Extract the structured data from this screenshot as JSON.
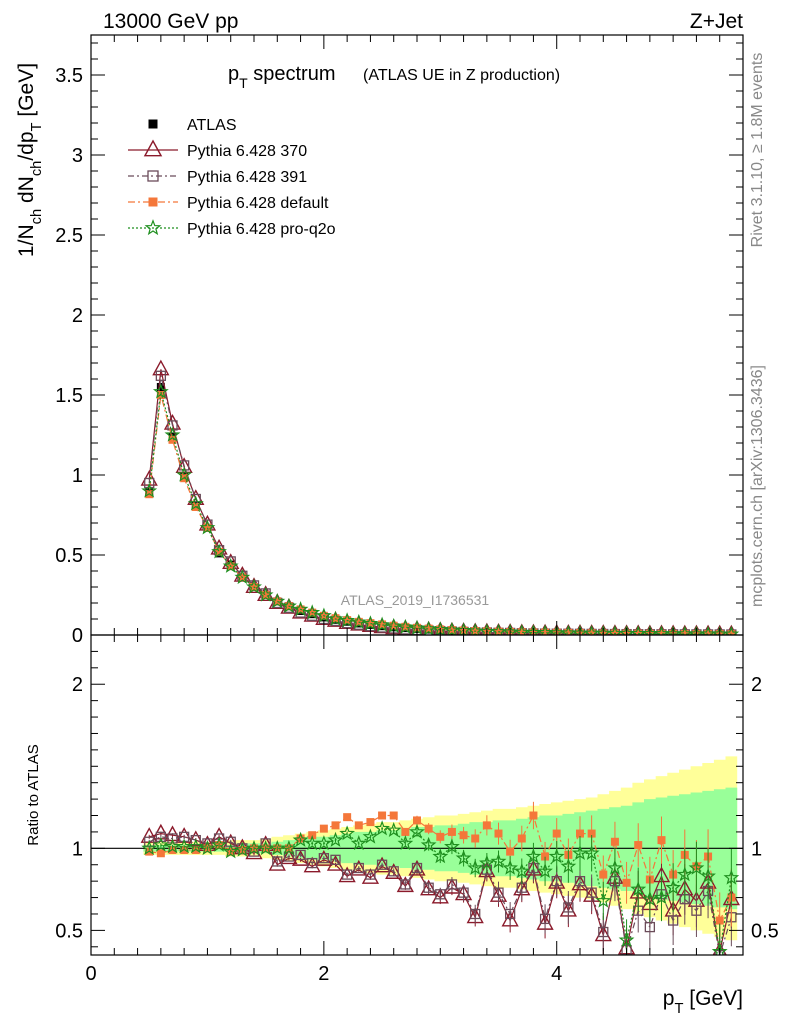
{
  "header": {
    "left": "13000 GeV pp",
    "right": "Z+Jet"
  },
  "side_labels": {
    "rivet": "Rivet 3.1.10, ≥ 1.8M events",
    "mcplots": "mcplots.cern.ch [arXiv:1306.3436]"
  },
  "chart_data": [
    {
      "type": "scatter",
      "title": "p_T spectrum",
      "subtitle": "(ATLAS UE in Z production)",
      "watermark": "ATLAS_2019_I1736531",
      "xlabel": "p_T [GeV]",
      "ylabel": "1/N_ch dN_ch/dp_T [GeV]",
      "xlim": [
        0,
        5.6
      ],
      "ylim": [
        0,
        3.75
      ],
      "xticks": [
        "0",
        "2",
        "4"
      ],
      "yticks": [
        "0",
        "0.5",
        "1",
        "1.5",
        "2",
        "2.5",
        "3",
        "3.5"
      ],
      "legend_position": "top-left",
      "x": [
        0.5,
        0.6,
        0.7,
        0.8,
        0.9,
        1.0,
        1.1,
        1.2,
        1.3,
        1.4,
        1.5,
        1.6,
        1.7,
        1.8,
        1.9,
        2.0,
        2.1,
        2.2,
        2.3,
        2.4,
        2.5,
        2.6,
        2.7,
        2.8,
        2.9,
        3.0,
        3.1,
        3.2,
        3.3,
        3.4,
        3.5,
        3.6,
        3.7,
        3.8,
        3.9,
        4.0,
        4.1,
        4.2,
        4.3,
        4.4,
        4.5,
        4.6,
        4.7,
        4.8,
        4.9,
        5.0,
        5.1,
        5.2,
        5.3,
        5.4,
        5.5
      ],
      "series": [
        {
          "name": "ATLAS",
          "color": "#000000",
          "marker": "filled-square",
          "values": [
            0.9,
            1.55,
            1.24,
            0.99,
            0.81,
            0.67,
            0.51,
            0.44,
            0.36,
            0.3,
            0.25,
            0.21,
            0.18,
            0.15,
            0.13,
            0.11,
            0.095,
            0.083,
            0.072,
            0.063,
            0.055,
            0.048,
            0.043,
            0.038,
            0.034,
            0.03,
            0.027,
            0.024,
            0.022,
            0.02,
            0.018,
            0.016,
            0.015,
            0.014,
            0.013,
            0.012,
            0.011,
            0.01,
            0.0095,
            0.009,
            0.0085,
            0.008,
            0.0075,
            0.007,
            0.0066,
            0.0062,
            0.0058,
            0.0055,
            0.0052,
            0.0049,
            0.0046
          ]
        },
        {
          "name": "Pythia 6.428 370",
          "color": "#8b1a2b",
          "marker": "open-triangle",
          "values": [
            0.97,
            1.66,
            1.32,
            1.05,
            0.85,
            0.69,
            0.54,
            0.45,
            0.37,
            0.3,
            0.25,
            0.2,
            0.17,
            0.14,
            0.12,
            0.1,
            0.088,
            0.075,
            0.065,
            0.056,
            0.048,
            0.042,
            0.036,
            0.032,
            0.027,
            0.024,
            0.021,
            0.019,
            0.017,
            0.016,
            0.014,
            0.013,
            0.011,
            0.01,
            0.009,
            0.0085,
            0.008,
            0.0075,
            0.007,
            0.0065,
            0.006,
            0.0055,
            0.005,
            0.0048,
            0.0045,
            0.0043,
            0.004,
            0.0038,
            0.0036,
            0.0034,
            0.0032
          ]
        },
        {
          "name": "Pythia 6.428 391",
          "color": "#6b4c5a",
          "marker": "open-square",
          "values": [
            0.95,
            1.62,
            1.31,
            1.06,
            0.85,
            0.69,
            0.53,
            0.46,
            0.37,
            0.31,
            0.26,
            0.2,
            0.17,
            0.14,
            0.12,
            0.1,
            0.088,
            0.074,
            0.064,
            0.055,
            0.047,
            0.041,
            0.035,
            0.031,
            0.027,
            0.024,
            0.021,
            0.019,
            0.017,
            0.016,
            0.014,
            0.013,
            0.011,
            0.01,
            0.009,
            0.0085,
            0.008,
            0.0075,
            0.007,
            0.0065,
            0.006,
            0.0055,
            0.005,
            0.0048,
            0.0045,
            0.0043,
            0.004,
            0.0038,
            0.0036,
            0.0034,
            0.0032
          ]
        },
        {
          "name": "Pythia 6.428 default",
          "color": "#f4773a",
          "marker": "filled-square",
          "values": [
            0.88,
            1.5,
            1.22,
            0.98,
            0.8,
            0.67,
            0.52,
            0.43,
            0.36,
            0.3,
            0.25,
            0.21,
            0.18,
            0.16,
            0.14,
            0.12,
            0.105,
            0.093,
            0.082,
            0.074,
            0.066,
            0.058,
            0.051,
            0.045,
            0.04,
            0.035,
            0.031,
            0.028,
            0.025,
            0.023,
            0.021,
            0.019,
            0.017,
            0.016,
            0.015,
            0.014,
            0.013,
            0.012,
            0.011,
            0.01,
            0.0095,
            0.009,
            0.0085,
            0.008,
            0.0075,
            0.007,
            0.0065,
            0.006,
            0.0057,
            0.0053,
            0.005
          ]
        },
        {
          "name": "Pythia 6.428 pro-q2o",
          "color": "#1f8f1f",
          "marker": "star",
          "values": [
            0.9,
            1.52,
            1.25,
            1.0,
            0.82,
            0.67,
            0.52,
            0.43,
            0.36,
            0.3,
            0.25,
            0.21,
            0.18,
            0.16,
            0.14,
            0.12,
            0.1,
            0.09,
            0.08,
            0.071,
            0.063,
            0.055,
            0.049,
            0.043,
            0.038,
            0.033,
            0.03,
            0.027,
            0.024,
            0.022,
            0.02,
            0.018,
            0.016,
            0.015,
            0.014,
            0.013,
            0.012,
            0.011,
            0.0105,
            0.01,
            0.0095,
            0.009,
            0.0085,
            0.008,
            0.0075,
            0.007,
            0.0065,
            0.006,
            0.0057,
            0.0053,
            0.005
          ]
        }
      ]
    },
    {
      "type": "scatter",
      "ylabel": "Ratio to ATLAS",
      "xlabel": "p_T [GeV]",
      "xlim": [
        0,
        5.6
      ],
      "ylim": [
        0.35,
        2.3
      ],
      "xticks": [
        "0",
        "2",
        "4"
      ],
      "yticks": [
        "0.5",
        "1",
        "2"
      ],
      "band_yellow_halfwidth": [
        0.04,
        0.04,
        0.04,
        0.04,
        0.04,
        0.04,
        0.04,
        0.05,
        0.05,
        0.05,
        0.06,
        0.07,
        0.08,
        0.09,
        0.1,
        0.11,
        0.12,
        0.13,
        0.14,
        0.15,
        0.16,
        0.16,
        0.17,
        0.18,
        0.19,
        0.2,
        0.2,
        0.21,
        0.22,
        0.23,
        0.24,
        0.24,
        0.25,
        0.26,
        0.27,
        0.28,
        0.29,
        0.3,
        0.31,
        0.33,
        0.35,
        0.37,
        0.4,
        0.42,
        0.44,
        0.46,
        0.48,
        0.5,
        0.52,
        0.54,
        0.56
      ],
      "band_green_halfwidth": [
        0.02,
        0.02,
        0.02,
        0.02,
        0.02,
        0.02,
        0.02,
        0.02,
        0.03,
        0.03,
        0.03,
        0.04,
        0.05,
        0.06,
        0.07,
        0.07,
        0.08,
        0.09,
        0.1,
        0.1,
        0.11,
        0.11,
        0.12,
        0.13,
        0.13,
        0.14,
        0.14,
        0.15,
        0.16,
        0.16,
        0.17,
        0.17,
        0.18,
        0.19,
        0.2,
        0.2,
        0.21,
        0.22,
        0.23,
        0.24,
        0.25,
        0.26,
        0.28,
        0.3,
        0.31,
        0.32,
        0.33,
        0.34,
        0.35,
        0.36,
        0.37
      ],
      "series": [
        {
          "name": "Pythia 6.428 370",
          "color": "#8b1a2b",
          "marker": "open-triangle",
          "values": [
            1.07,
            1.09,
            1.08,
            1.07,
            1.05,
            1.02,
            1.07,
            1.03,
            1.0,
            0.97,
            1.02,
            0.9,
            0.94,
            0.93,
            0.89,
            0.93,
            0.9,
            0.83,
            0.87,
            0.82,
            0.89,
            0.85,
            0.77,
            0.87,
            0.75,
            0.7,
            0.76,
            0.72,
            0.58,
            0.86,
            0.71,
            0.56,
            0.75,
            0.87,
            0.54,
            0.79,
            0.62,
            0.78,
            0.71,
            0.47,
            0.82,
            0.39,
            0.73,
            0.66,
            0.83,
            0.62,
            0.75,
            0.68,
            0.79,
            0.37,
            0.69
          ]
        },
        {
          "name": "Pythia 6.428 391",
          "color": "#6b4c5a",
          "marker": "open-square",
          "values": [
            1.04,
            1.07,
            1.06,
            1.07,
            1.05,
            1.03,
            1.06,
            1.04,
            1.0,
            0.98,
            1.03,
            0.92,
            0.95,
            0.96,
            0.91,
            0.94,
            0.93,
            0.84,
            0.88,
            0.84,
            0.9,
            0.86,
            0.78,
            0.88,
            0.76,
            0.72,
            0.78,
            0.73,
            0.6,
            0.87,
            0.73,
            0.6,
            0.76,
            0.88,
            0.57,
            0.8,
            0.64,
            0.8,
            0.73,
            0.49,
            0.8,
            0.38,
            0.62,
            0.52,
            0.72,
            0.56,
            0.69,
            0.62,
            0.74,
            0.35,
            0.58
          ]
        },
        {
          "name": "Pythia 6.428 default",
          "color": "#f4773a",
          "marker": "filled-square",
          "values": [
            0.98,
            0.97,
            0.99,
            0.99,
            0.99,
            1.0,
            1.02,
            0.98,
            0.99,
            1.0,
            1.0,
            1.0,
            1.0,
            1.06,
            1.08,
            1.12,
            1.14,
            1.19,
            1.14,
            1.16,
            1.2,
            1.2,
            1.1,
            1.17,
            1.12,
            1.07,
            1.1,
            1.08,
            1.06,
            1.14,
            1.09,
            0.98,
            1.06,
            1.2,
            0.95,
            1.09,
            0.96,
            1.09,
            1.09,
            0.84,
            1.04,
            0.79,
            1.02,
            0.81,
            1.05,
            0.84,
            0.96,
            0.89,
            0.95,
            0.56,
            0.7
          ]
        },
        {
          "name": "Pythia 6.428 pro-q2o",
          "color": "#1f8f1f",
          "marker": "star",
          "values": [
            1.0,
            1.02,
            1.01,
            1.01,
            1.01,
            1.0,
            1.02,
            0.98,
            0.99,
            1.0,
            1.0,
            1.0,
            1.0,
            1.05,
            1.03,
            1.03,
            1.05,
            1.09,
            1.03,
            1.07,
            1.12,
            1.11,
            1.03,
            1.1,
            1.02,
            0.95,
            1.01,
            0.94,
            0.88,
            0.91,
            0.92,
            0.88,
            0.86,
            0.95,
            0.86,
            0.95,
            0.89,
            0.97,
            0.97,
            0.68,
            0.88,
            0.44,
            0.75,
            0.69,
            0.7,
            0.76,
            0.84,
            0.88,
            0.83,
            0.37,
            0.82
          ]
        }
      ]
    }
  ]
}
